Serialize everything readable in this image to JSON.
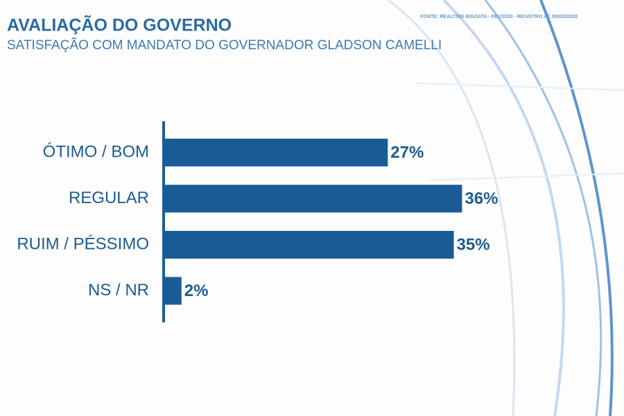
{
  "chart_data": {
    "type": "bar",
    "orientation": "horizontal",
    "title": "AVALIAÇÃO DO GOVERNO",
    "subtitle": "SATISFAÇÃO COM MANDATO DO GOVERNADOR GLADSON CAMELLI",
    "source": "FONTE: REALTIME BIGDATA - FEV/2020 - REGISTRO AC 05053/2020",
    "categories": [
      "ÓTIMO / BOM",
      "REGULAR",
      "RUIM / PÉSSIMO",
      "NS / NR"
    ],
    "values": [
      27,
      36,
      35,
      2
    ],
    "value_labels": [
      "27%",
      "36%",
      "35%",
      "2%"
    ],
    "color": "#1a5d96"
  }
}
